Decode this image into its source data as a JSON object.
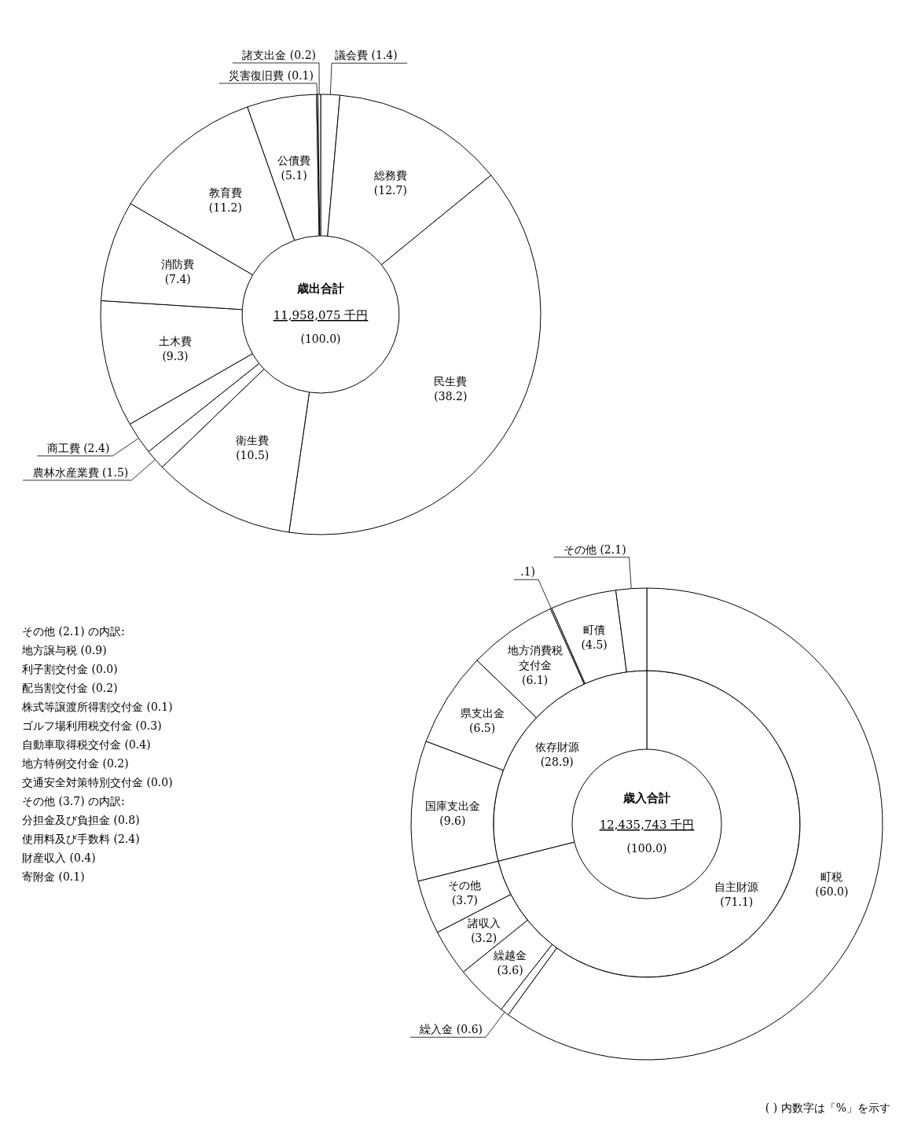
{
  "chart_data": [
    {
      "type": "donut",
      "title": "歳出合計",
      "subtitle": "11,958,075 千円",
      "categories": [
        "議会費",
        "総務費",
        "民生費",
        "衛生費",
        "農林水産業費",
        "商工費",
        "土木費",
        "消防費",
        "教育費",
        "公債費",
        "災害復旧費",
        "諸支出金"
      ],
      "values": [
        1.4,
        12.7,
        38.2,
        10.5,
        1.5,
        2.4,
        9.3,
        7.4,
        11.2,
        5.1,
        0.1,
        0.2
      ],
      "value_labels": [
        "(1.4)",
        "(12.7)",
        "(38.2)",
        "(10.5)",
        "(1.5)",
        "(2.4)",
        "(9.3)",
        "(7.4)",
        "(11.2)",
        "(5.1)",
        "(0.1)",
        "(0.2)"
      ],
      "color": "#ffffff",
      "annotations": [
        "(100.0)"
      ]
    },
    {
      "type": "donut",
      "title": "歳入合計",
      "subtitle": "12,435,743 千円",
      "categories": [
        "自主財源",
        "依存財源"
      ],
      "values": [
        71.1,
        28.9
      ],
      "value_labels": [
        "(71.1)",
        "(28.9)"
      ],
      "color": "#ffffff",
      "annotations": [
        "(100.0)"
      ]
    },
    {
      "type": "donut",
      "categories": [
        "町税",
        "繰入金",
        "繰越金",
        "諸収入",
        "その他",
        "国庫支出金",
        "県支出金",
        "地方消費税交付金",
        null,
        "町債",
        "その他"
      ],
      "values": [
        60.0,
        0.6,
        3.6,
        3.2,
        3.7,
        9.6,
        6.5,
        6.1,
        0.1,
        4.5,
        2.1
      ],
      "value_labels": [
        "(60.0)",
        "(0.6)",
        "(3.6)",
        "(3.2)",
        "(3.7)",
        "(9.6)",
        "(6.5)",
        "(6.1)",
        ".1)",
        "(4.5)",
        "(2.1)"
      ],
      "color": "#ffffff",
      "annotations": [
        "その他 (2.1) の内訳:",
        "地方譲与税 (0.9)",
        "利子割交付金 (0.0)",
        "配当割交付金 (0.2)",
        "株式等譲渡所得割交付金 (0.1)",
        "ゴルフ場利用税交付金 (0.3)",
        "自動車取得税交付金 (0.4)",
        "地方特例交付金 (0.2)",
        "交通安全対策特別交付金 (0.0)",
        "その他 (3.7) の内訳:",
        "分担金及び負担金 (0.8)",
        "使用料及び手数料 (2.4)",
        "財産収入 (0.4)",
        "寄附金 (0.1)",
        "( ) 内数字は「%」を示す"
      ]
    }
  ]
}
